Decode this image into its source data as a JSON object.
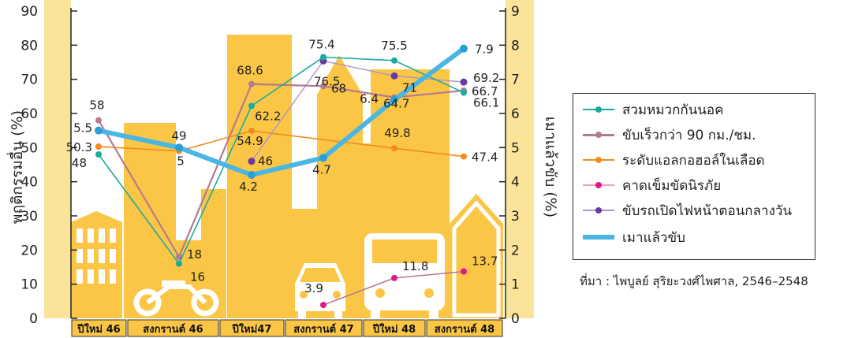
{
  "chart_data": {
    "type": "line",
    "title": "",
    "ylabel": "พฤติกรรมอื่น (%)",
    "y2label": "เมาแล้วขับ (%)",
    "ylim": [
      0,
      90
    ],
    "y2lim": [
      0,
      9
    ],
    "yticks": [
      "0",
      "10",
      "20",
      "30",
      "40",
      "50",
      "60",
      "70",
      "80",
      "90"
    ],
    "y2ticks": [
      "0",
      "1",
      "2",
      "3",
      "4",
      "5",
      "6",
      "7",
      "8",
      "9"
    ],
    "categories": [
      "ปีใหม่ 46",
      "สงกรานต์ 46",
      "ปีใหม่47",
      "สงกรานต์ 47",
      "ปีใหม่ 48",
      "สงกรานต์ 48"
    ],
    "series": [
      {
        "name": "สวมหมวกกันนอค",
        "color": "#1aaba0",
        "axis": "left",
        "values": [
          48,
          16,
          62.2,
          76.5,
          75.5,
          66.1
        ],
        "labels": [
          "48",
          "16",
          "62.2",
          "76.5",
          "75.5",
          "66.1"
        ]
      },
      {
        "name": "ขับเร็วกว่า 90 กม./ชม.",
        "color": "#b57a8e",
        "axis": "left",
        "values": [
          58,
          18,
          68.6,
          68,
          64.7,
          66.7
        ],
        "labels": [
          "58",
          "18",
          "68.6",
          "68",
          "64.7",
          "66.7"
        ]
      },
      {
        "name": "ระดับแอลกอฮอล์ในเลือด",
        "color": "#f08c1e",
        "axis": "left",
        "values": [
          50.3,
          49,
          54.9,
          null,
          49.8,
          47.4
        ],
        "labels": [
          "50.3",
          "49",
          "54.9",
          "",
          "49.8",
          "47.4"
        ]
      },
      {
        "name": "คาดเข็มขัดนิรภัย",
        "color": "#e0198a",
        "axis": "left",
        "values": [
          null,
          null,
          null,
          3.9,
          11.8,
          13.7
        ],
        "labels": [
          "",
          "",
          "",
          "3.9",
          "11.8",
          "13.7"
        ]
      },
      {
        "name": "ขับรถเปิดไฟหน้าตอนกลางวัน",
        "color": "#8a6ab8",
        "axis": "left",
        "values": [
          null,
          null,
          46,
          75.4,
          71,
          69.2
        ],
        "labels": [
          "",
          "",
          "46",
          "75.4",
          "71",
          "69.2"
        ]
      },
      {
        "name": "เมาแล้วขับ",
        "color": "#4ab6e2",
        "axis": "right",
        "values": [
          5.5,
          5,
          4.2,
          4.7,
          6.4,
          7.9
        ],
        "labels": [
          "5.5",
          "5",
          "4.2",
          "4.7",
          "6.4",
          "7.9"
        ]
      }
    ],
    "grid": false,
    "legend": "right"
  },
  "source": "ที่มา : ไพบูลย์ สุริยะวงศ์ไพศาล, 2546–2548",
  "colors": {
    "background": "#ffffff",
    "building": "#fbc646",
    "axis_band": "#fbe39a",
    "icon_white": "#ffffff"
  }
}
